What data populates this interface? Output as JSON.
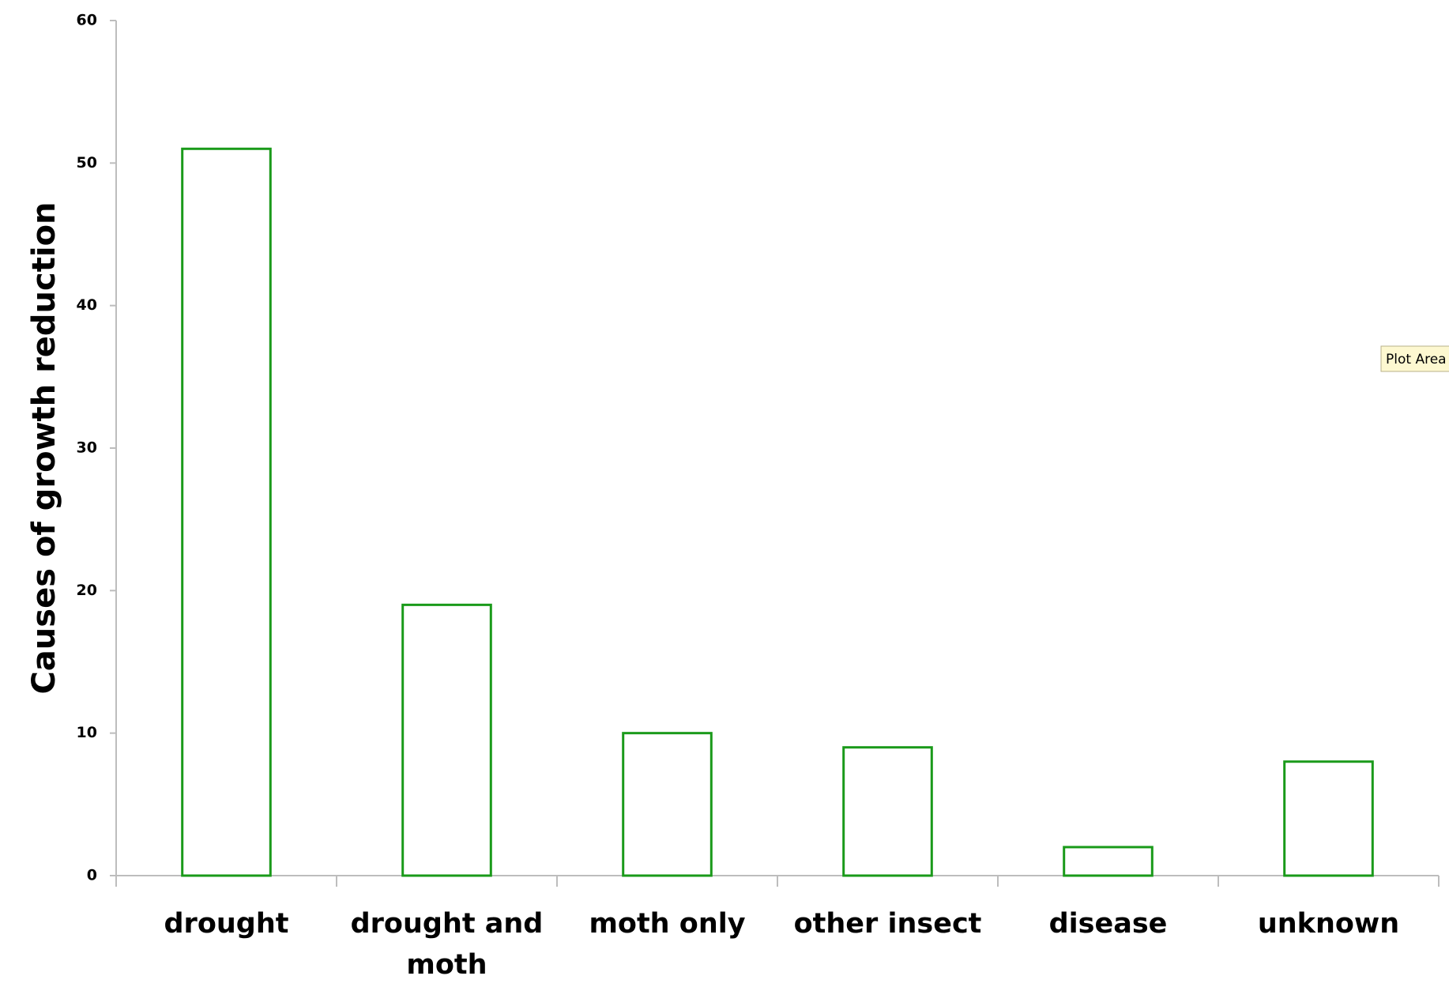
{
  "chart_data": {
    "type": "bar",
    "y_label": "Causes of growth reduction",
    "categories": [
      "drought",
      "drought and moth",
      "moth only",
      "other insect",
      "disease",
      "unknown"
    ],
    "values": [
      51,
      19,
      10,
      9,
      2,
      8
    ],
    "color": "#1a9a1a",
    "ylim": [
      0,
      60
    ],
    "yticks": [
      0,
      10,
      20,
      30,
      40,
      50,
      60
    ],
    "grid": false,
    "tooltip": "Plot Area"
  }
}
